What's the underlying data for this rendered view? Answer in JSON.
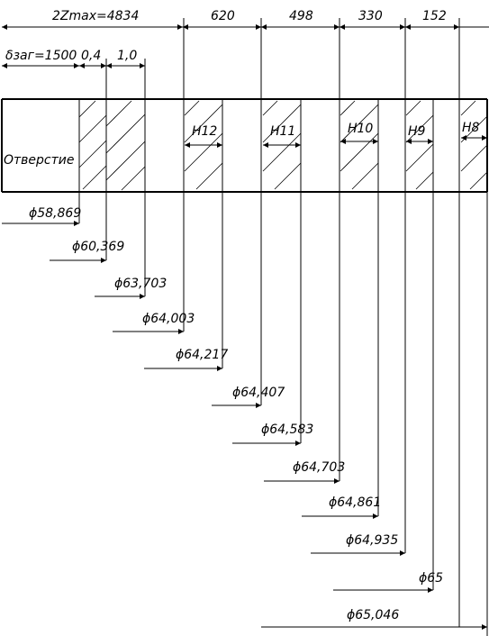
{
  "top_dimensions": {
    "total": "2Zmax=4834",
    "h12": "620",
    "h11": "498",
    "h10": "330",
    "h9": "152"
  },
  "second_row_dimensions": {
    "blank": "δзаг=1500",
    "step1": "0,4",
    "step2": "1,0"
  },
  "zones": {
    "hole": "Отверстие",
    "h12": "H12",
    "h11": "H11",
    "h10": "H10",
    "h9": "H9",
    "h8": "H8"
  },
  "diameters": [
    "ϕ58,869",
    "ϕ60,369",
    "ϕ63,703",
    "ϕ64,003",
    "ϕ64,217",
    "ϕ64,407",
    "ϕ64,583",
    "ϕ64,703",
    "ϕ64,861",
    "ϕ64,935",
    "ϕ65",
    "ϕ65,046"
  ]
}
